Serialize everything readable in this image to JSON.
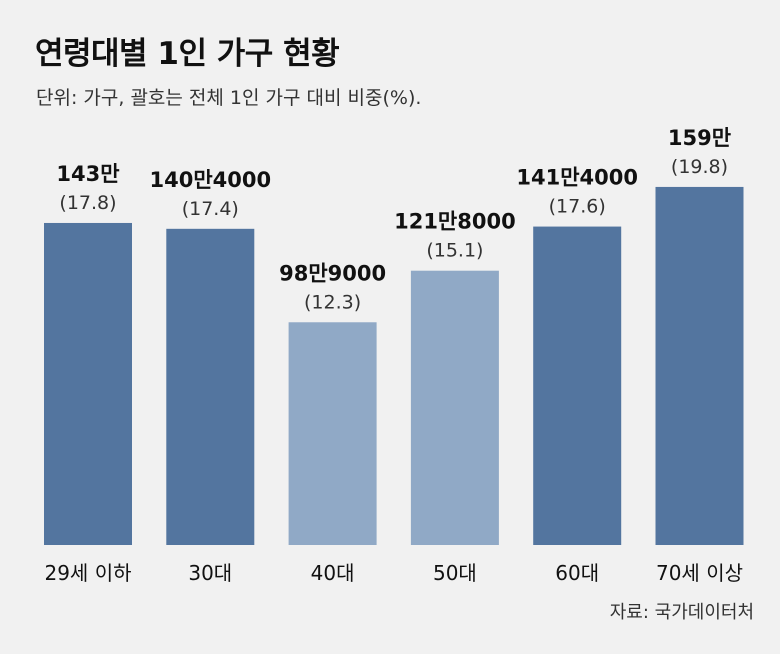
{
  "title": "연령대별 1인 가구 현황",
  "subtitle": "단위: 가구, 괄호는 전체 1인 가구 대비 비중(%).",
  "source": "자료: 국가데이터처",
  "colors": {
    "background": "#f1f1f1",
    "bar_dark": "#53759f",
    "bar_light": "#90a9c6",
    "text": "#111111",
    "subtext": "#333333"
  },
  "chart_data": {
    "type": "bar",
    "title": "연령대별 1인 가구 현황",
    "xlabel": "",
    "ylabel": "가구",
    "ylim": [
      0,
      1700000
    ],
    "grid": false,
    "legend": "none",
    "categories": [
      "29세 이하",
      "30대",
      "40대",
      "50대",
      "60대",
      "70세 이상"
    ],
    "values": [
      1430000,
      1404000,
      989000,
      1218000,
      1414000,
      1590000
    ],
    "value_labels": [
      "143만",
      "140만4000",
      "98만9000",
      "121만8000",
      "141만4000",
      "159만"
    ],
    "shares": [
      "(17.8)",
      "(17.4)",
      "(12.3)",
      "(15.1)",
      "(17.6)",
      "(19.8)"
    ],
    "highlight": [
      true,
      true,
      false,
      false,
      true,
      true
    ]
  }
}
